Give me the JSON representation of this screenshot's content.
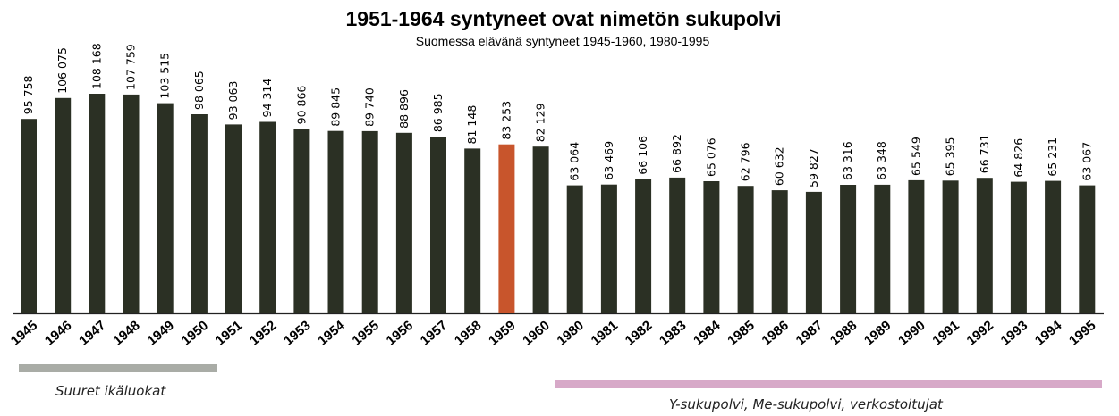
{
  "title": "1951-1964 syntyneet ovat nimetön sukupolvi",
  "subtitle": "Suomessa elävänä syntyneet 1945-1960, 1980-1995",
  "colors": {
    "bar": "#2b3024",
    "highlight": "#c8552c",
    "group1": "#a9aca6",
    "group2": "#d7a9c8"
  },
  "chart_data": {
    "type": "bar",
    "title": "1951-1964 syntyneet ovat nimetön sukupolvi",
    "subtitle": "Suomessa elävänä syntyneet 1945-1960, 1980-1995",
    "categories": [
      "1945",
      "1946",
      "1947",
      "1948",
      "1949",
      "1950",
      "1951",
      "1952",
      "1953",
      "1954",
      "1955",
      "1956",
      "1957",
      "1958",
      "1959",
      "1960",
      "1980",
      "1981",
      "1982",
      "1983",
      "1984",
      "1985",
      "1986",
      "1987",
      "1988",
      "1989",
      "1990",
      "1991",
      "1992",
      "1993",
      "1994",
      "1995"
    ],
    "values": [
      95758,
      106075,
      108168,
      107759,
      103515,
      98065,
      93063,
      94314,
      90866,
      89845,
      89740,
      88896,
      86985,
      81148,
      83253,
      82129,
      63064,
      63469,
      66106,
      66892,
      65076,
      62796,
      60632,
      59827,
      63316,
      63348,
      65549,
      65395,
      66731,
      64826,
      65231,
      63067
    ],
    "labels": [
      "95 758",
      "106 075",
      "108 168",
      "107 759",
      "103 515",
      "98 065",
      "93 063",
      "94 314",
      "90 866",
      "89 845",
      "89 740",
      "88 896",
      "86 985",
      "81 148",
      "83 253",
      "82 129",
      "63 064",
      "63 469",
      "66 106",
      "66 892",
      "65 076",
      "62 796",
      "60 632",
      "59 827",
      "63 316",
      "63 348",
      "65 549",
      "65 395",
      "66 731",
      "64 826",
      "65 231",
      "63 067"
    ],
    "highlight_category": "1959",
    "ylim": [
      0,
      110000
    ],
    "grid": false,
    "legend": "none"
  },
  "groups": [
    {
      "label": "Suuret ikäluokat"
    },
    {
      "label": "Y-sukupolvi, Me-sukupolvi, verkostoitujat"
    }
  ]
}
